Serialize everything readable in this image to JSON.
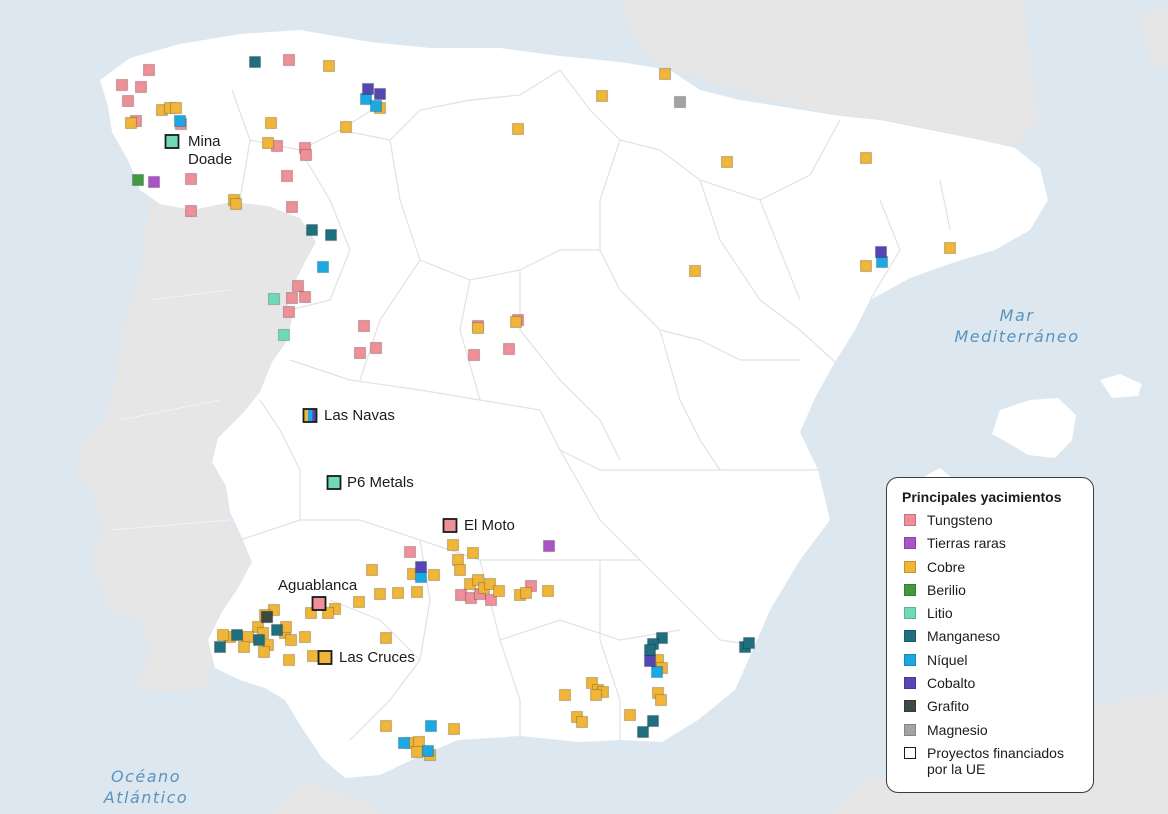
{
  "colors": {
    "sea": "#dde7f0",
    "spain_land": "#ffffff",
    "foreign_land": "#e6e6e6",
    "border": "#e2e2e2",
    "sea_label": "#5a93bd"
  },
  "sea_labels": {
    "mediterranean": "Mar\nMediterráneo",
    "atlantic": "Océano\nAtlántico"
  },
  "legend": {
    "title": "Principales yacimientos",
    "items": [
      {
        "key": "tungsteno",
        "label": "Tungsteno",
        "color": "#ef8f98",
        "outline": false
      },
      {
        "key": "tierras_raras",
        "label": "Tierras raras",
        "color": "#a955c8",
        "outline": false
      },
      {
        "key": "cobre",
        "label": "Cobre",
        "color": "#f0b63a",
        "outline": false
      },
      {
        "key": "berilio",
        "label": "Berilio",
        "color": "#3f9b3e",
        "outline": false
      },
      {
        "key": "litio",
        "label": "Litio",
        "color": "#6fd9b9",
        "outline": false
      },
      {
        "key": "manganeso",
        "label": "Manganeso",
        "color": "#1f6f7f",
        "outline": false
      },
      {
        "key": "niquel",
        "label": "Níquel",
        "color": "#1aa9e3",
        "outline": false
      },
      {
        "key": "cobalto",
        "label": "Cobalto",
        "color": "#5447b4",
        "outline": false
      },
      {
        "key": "grafito",
        "label": "Grafito",
        "color": "#3d4a44",
        "outline": false
      },
      {
        "key": "magnesio",
        "label": "Magnesio",
        "color": "#a3a3a3",
        "outline": false
      },
      {
        "key": "proyectos_ue",
        "label": "Proyectos financiados por la UE",
        "color": "#ffffff",
        "outline": true
      }
    ]
  },
  "eu_projects": [
    {
      "name": "Mina\nDoade",
      "type": "litio"
    },
    {
      "name": "Las Navas",
      "type": "mixed"
    },
    {
      "name": "P6 Metals",
      "type": "litio"
    },
    {
      "name": "El Moto",
      "type": "tungsteno"
    },
    {
      "name": "Aguablanca",
      "type": "tungsteno"
    },
    {
      "name": "Las Cruces",
      "type": "cobre"
    }
  ]
}
